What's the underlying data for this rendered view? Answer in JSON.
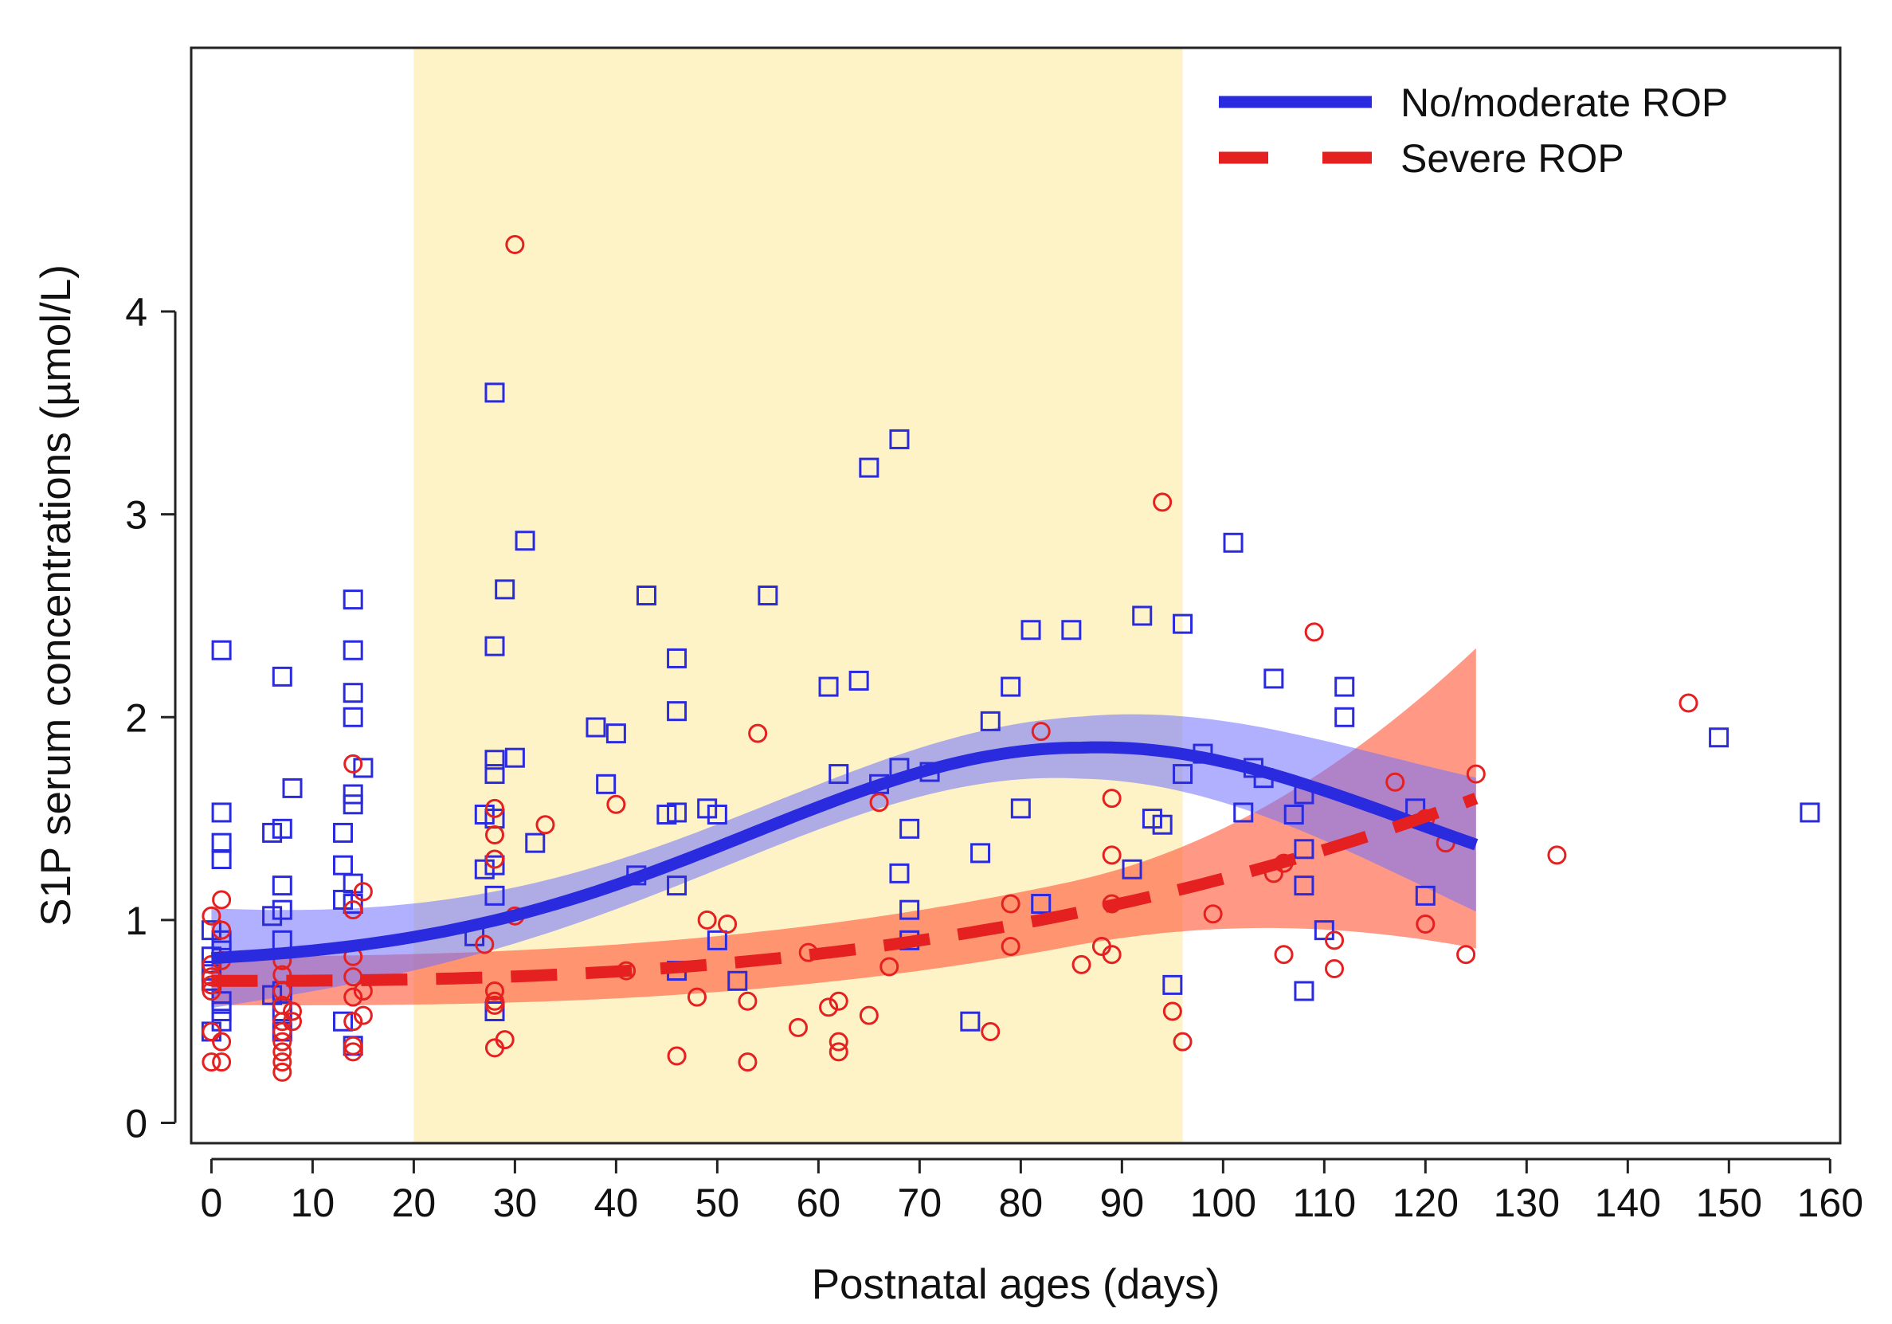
{
  "chart_data": {
    "type": "scatter",
    "xlabel": "Postnatal ages (days)",
    "ylabel": "S1P serum concentrations (µmol/L)",
    "xlim": [
      -2,
      161
    ],
    "ylim": [
      -0.1,
      5.3
    ],
    "xticks": [
      0,
      10,
      20,
      30,
      40,
      50,
      60,
      70,
      80,
      90,
      100,
      110,
      120,
      130,
      140,
      150,
      160
    ],
    "yticks": [
      0,
      1,
      2,
      3,
      4
    ],
    "shaded_region": {
      "x_start": 20,
      "x_end": 96,
      "color": "#fdf3c6"
    },
    "legend": {
      "position": "top-right",
      "entries": [
        "No/moderate ROP",
        "Severe ROP"
      ]
    },
    "series": [
      {
        "name": "No/moderate ROP",
        "marker": "square",
        "color": "#2a2adf",
        "points": [
          [
            0,
            0.95
          ],
          [
            0,
            0.82
          ],
          [
            0,
            0.75
          ],
          [
            0,
            0.7
          ],
          [
            0,
            0.45
          ],
          [
            1,
            2.33
          ],
          [
            1,
            1.53
          ],
          [
            1,
            1.38
          ],
          [
            1,
            1.3
          ],
          [
            1,
            0.9
          ],
          [
            1,
            0.85
          ],
          [
            1,
            0.6
          ],
          [
            1,
            0.55
          ],
          [
            1,
            0.5
          ],
          [
            6,
            1.43
          ],
          [
            6,
            1.02
          ],
          [
            6,
            0.63
          ],
          [
            7,
            2.2
          ],
          [
            7,
            1.45
          ],
          [
            7,
            1.17
          ],
          [
            7,
            1.05
          ],
          [
            7,
            0.9
          ],
          [
            7,
            0.65
          ],
          [
            7,
            0.55
          ],
          [
            7,
            0.45
          ],
          [
            8,
            1.65
          ],
          [
            13,
            1.43
          ],
          [
            13,
            1.27
          ],
          [
            13,
            1.1
          ],
          [
            13,
            0.5
          ],
          [
            14,
            2.58
          ],
          [
            14,
            2.33
          ],
          [
            14,
            2.12
          ],
          [
            14,
            2.0
          ],
          [
            14,
            1.62
          ],
          [
            14,
            1.57
          ],
          [
            14,
            1.18
          ],
          [
            14,
            1.08
          ],
          [
            14,
            0.38
          ],
          [
            15,
            1.75
          ],
          [
            26,
            0.92
          ],
          [
            27,
            1.52
          ],
          [
            27,
            1.25
          ],
          [
            28,
            3.6
          ],
          [
            28,
            2.35
          ],
          [
            28,
            1.79
          ],
          [
            28,
            1.72
          ],
          [
            28,
            1.5
          ],
          [
            28,
            1.27
          ],
          [
            28,
            1.12
          ],
          [
            28,
            0.55
          ],
          [
            29,
            2.63
          ],
          [
            30,
            1.8
          ],
          [
            31,
            2.87
          ],
          [
            32,
            1.38
          ],
          [
            38,
            1.95
          ],
          [
            39,
            1.67
          ],
          [
            40,
            1.92
          ],
          [
            42,
            1.22
          ],
          [
            43,
            2.6
          ],
          [
            45,
            1.52
          ],
          [
            46,
            2.29
          ],
          [
            46,
            2.03
          ],
          [
            46,
            1.53
          ],
          [
            46,
            1.17
          ],
          [
            46,
            0.75
          ],
          [
            49,
            1.55
          ],
          [
            50,
            0.9
          ],
          [
            50,
            1.52
          ],
          [
            52,
            0.7
          ],
          [
            55,
            2.6
          ],
          [
            61,
            2.15
          ],
          [
            62,
            1.72
          ],
          [
            64,
            2.18
          ],
          [
            65,
            3.23
          ],
          [
            66,
            1.67
          ],
          [
            68,
            3.37
          ],
          [
            68,
            1.75
          ],
          [
            68,
            1.23
          ],
          [
            69,
            1.45
          ],
          [
            69,
            1.05
          ],
          [
            69,
            0.9
          ],
          [
            71,
            1.73
          ],
          [
            75,
            0.5
          ],
          [
            76,
            1.33
          ],
          [
            77,
            1.98
          ],
          [
            79,
            2.15
          ],
          [
            80,
            1.55
          ],
          [
            81,
            2.43
          ],
          [
            82,
            1.08
          ],
          [
            85,
            2.43
          ],
          [
            91,
            1.25
          ],
          [
            92,
            2.5
          ],
          [
            93,
            1.5
          ],
          [
            94,
            1.47
          ],
          [
            95,
            0.68
          ],
          [
            96,
            2.46
          ],
          [
            96,
            1.72
          ],
          [
            98,
            1.82
          ],
          [
            101,
            2.86
          ],
          [
            102,
            1.53
          ],
          [
            103,
            1.75
          ],
          [
            104,
            1.7
          ],
          [
            105,
            2.19
          ],
          [
            107,
            1.52
          ],
          [
            108,
            1.62
          ],
          [
            108,
            1.35
          ],
          [
            108,
            1.17
          ],
          [
            108,
            0.65
          ],
          [
            110,
            0.95
          ],
          [
            112,
            2.15
          ],
          [
            112,
            2.0
          ],
          [
            119,
            1.55
          ],
          [
            120,
            1.12
          ],
          [
            149,
            1.9
          ],
          [
            158,
            1.53
          ]
        ]
      },
      {
        "name": "Severe ROP",
        "marker": "circle",
        "color": "#e52020",
        "points": [
          [
            0,
            1.02
          ],
          [
            0,
            0.78
          ],
          [
            0,
            0.72
          ],
          [
            0,
            0.68
          ],
          [
            0,
            0.65
          ],
          [
            0,
            0.45
          ],
          [
            0,
            0.3
          ],
          [
            1,
            1.1
          ],
          [
            1,
            0.95
          ],
          [
            1,
            0.8
          ],
          [
            1,
            0.4
          ],
          [
            1,
            0.3
          ],
          [
            7,
            0.8
          ],
          [
            7,
            0.73
          ],
          [
            7,
            0.65
          ],
          [
            7,
            0.58
          ],
          [
            7,
            0.5
          ],
          [
            7,
            0.45
          ],
          [
            7,
            0.4
          ],
          [
            7,
            0.35
          ],
          [
            7,
            0.3
          ],
          [
            7,
            0.25
          ],
          [
            8,
            0.55
          ],
          [
            8,
            0.5
          ],
          [
            14,
            1.77
          ],
          [
            14,
            1.05
          ],
          [
            14,
            0.82
          ],
          [
            14,
            0.72
          ],
          [
            14,
            0.62
          ],
          [
            14,
            0.5
          ],
          [
            14,
            0.38
          ],
          [
            14,
            0.35
          ],
          [
            15,
            1.14
          ],
          [
            15,
            0.65
          ],
          [
            15,
            0.53
          ],
          [
            27,
            0.88
          ],
          [
            28,
            1.55
          ],
          [
            28,
            1.42
          ],
          [
            28,
            1.3
          ],
          [
            28,
            0.65
          ],
          [
            28,
            0.6
          ],
          [
            28,
            0.58
          ],
          [
            28,
            0.37
          ],
          [
            29,
            0.41
          ],
          [
            30,
            4.33
          ],
          [
            30,
            1.02
          ],
          [
            33,
            1.47
          ],
          [
            40,
            1.57
          ],
          [
            41,
            0.75
          ],
          [
            48,
            0.62
          ],
          [
            49,
            1.0
          ],
          [
            51,
            0.98
          ],
          [
            53,
            0.6
          ],
          [
            53,
            0.3
          ],
          [
            54,
            1.92
          ],
          [
            46,
            0.33
          ],
          [
            58,
            0.47
          ],
          [
            59,
            0.84
          ],
          [
            61,
            0.57
          ],
          [
            62,
            0.6
          ],
          [
            62,
            0.4
          ],
          [
            62,
            0.35
          ],
          [
            65,
            0.53
          ],
          [
            66,
            1.58
          ],
          [
            67,
            0.77
          ],
          [
            77,
            0.45
          ],
          [
            79,
            1.08
          ],
          [
            79,
            0.87
          ],
          [
            82,
            1.93
          ],
          [
            86,
            0.78
          ],
          [
            88,
            0.87
          ],
          [
            89,
            1.6
          ],
          [
            89,
            1.32
          ],
          [
            89,
            1.08
          ],
          [
            89,
            0.83
          ],
          [
            94,
            3.06
          ],
          [
            95,
            0.55
          ],
          [
            96,
            0.4
          ],
          [
            99,
            1.03
          ],
          [
            105,
            1.23
          ],
          [
            106,
            1.28
          ],
          [
            106,
            0.83
          ],
          [
            109,
            2.42
          ],
          [
            111,
            0.9
          ],
          [
            111,
            0.76
          ],
          [
            117,
            1.68
          ],
          [
            120,
            1.5
          ],
          [
            120,
            0.98
          ],
          [
            122,
            1.38
          ],
          [
            124,
            0.83
          ],
          [
            125,
            1.72
          ],
          [
            133,
            1.32
          ],
          [
            146,
            2.07
          ]
        ]
      }
    ]
  }
}
